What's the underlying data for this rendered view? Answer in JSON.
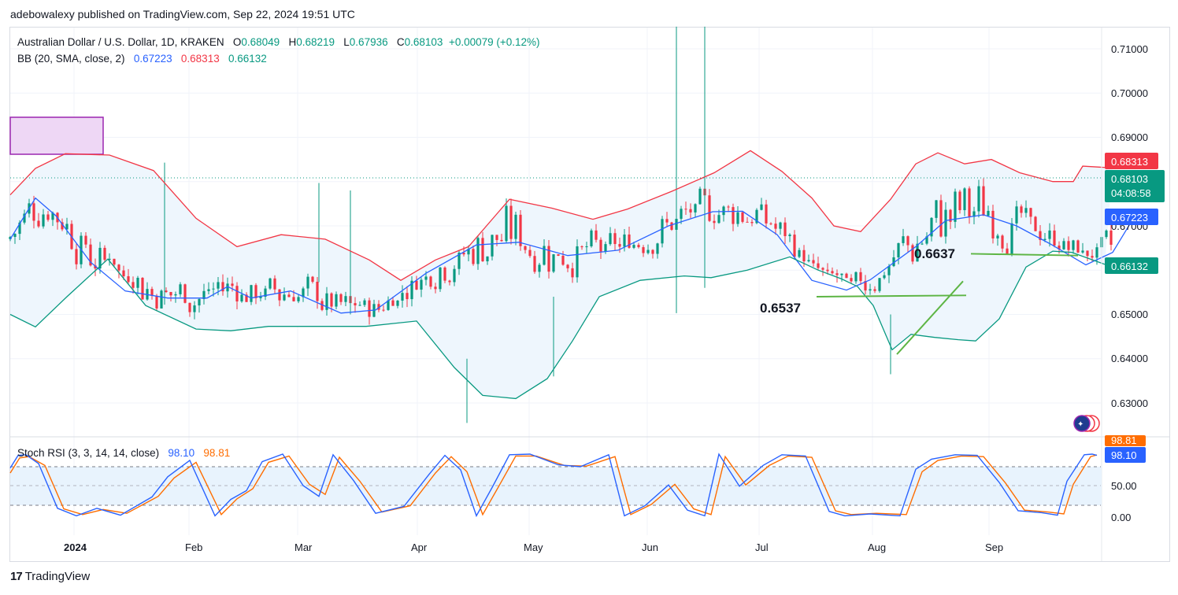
{
  "header": {
    "published_by": "adebowalexy published on TradingView.com, Sep 22, 2024 19:51 UTC"
  },
  "legend": {
    "symbol_label": "Australian Dollar / U.S. Dollar, 1D, KRAKEN",
    "open_prefix": "O",
    "open": "0.68049",
    "high_prefix": "H",
    "high": "0.68219",
    "low_prefix": "L",
    "low": "0.67936",
    "close_prefix": "C",
    "close": "0.68103",
    "change": "+0.00079 (+0.12%)",
    "bb_label": "BB (20, SMA, close, 2)",
    "bb_basis": "0.67223",
    "bb_upper": "0.68313",
    "bb_lower": "0.66132",
    "stoch_label": "Stoch RSI (3, 3, 14, 14, close)",
    "stoch_k": "98.10",
    "stoch_d": "98.81"
  },
  "price_axis": {
    "ticks": [
      "0.71000",
      "0.70000",
      "0.69000",
      "0.67000",
      "0.65000",
      "0.64000",
      "0.63000"
    ],
    "badge_upper": "0.68313",
    "badge_price": "0.68103",
    "badge_countdown": "04:08:58",
    "badge_basis": "0.67223",
    "badge_lower": "0.66132"
  },
  "rsi_axis": {
    "ticks": [
      "50.00",
      "0.00"
    ],
    "badge_d": "98.81",
    "badge_k": "98.10"
  },
  "time_axis": {
    "labels": [
      "2024",
      "Feb",
      "Mar",
      "Apr",
      "May",
      "Jun",
      "Jul",
      "Aug",
      "Sep"
    ]
  },
  "annotations": {
    "support_label": "0.6537",
    "resistance_label": "0.6637"
  },
  "brand": {
    "name": "TradingView",
    "mark": "17"
  },
  "colors": {
    "bull": "#089981",
    "bear": "#f23645",
    "bb_basis": "#2962ff",
    "bb_upper": "#f23645",
    "bb_lower": "#089981",
    "bb_fill": "#eef6fd",
    "stoch_k": "#2962ff",
    "stoch_d": "#ff6d00",
    "trendline": "#5db544",
    "supply_zone": "#9c27b0"
  },
  "chart_data": {
    "type": "candlestick",
    "series_labels": [
      "BB basis",
      "BB upper",
      "BB lower",
      "Stoch RSI K",
      "Stoch RSI D"
    ],
    "y_range": [
      0.6235,
      0.7145
    ],
    "x_labels": [
      "2024",
      "Feb",
      "Mar",
      "Apr",
      "May",
      "Jun",
      "Jul",
      "Aug",
      "Sep"
    ],
    "bb_basis": [
      [
        0,
        0.667
      ],
      [
        16,
        0.6763
      ],
      [
        29,
        0.6723
      ],
      [
        51,
        0.6618
      ],
      [
        73,
        0.6553
      ],
      [
        100,
        0.6537
      ],
      [
        125,
        0.6537
      ],
      [
        138,
        0.6563
      ],
      [
        153,
        0.6537
      ],
      [
        178,
        0.6553
      ],
      [
        210,
        0.6503
      ],
      [
        232,
        0.651
      ],
      [
        264,
        0.6593
      ],
      [
        296,
        0.6657
      ],
      [
        323,
        0.6663
      ],
      [
        354,
        0.6633
      ],
      [
        386,
        0.6645
      ],
      [
        418,
        0.67
      ],
      [
        446,
        0.6732
      ],
      [
        465,
        0.6733
      ],
      [
        487,
        0.668
      ],
      [
        509,
        0.6577
      ],
      [
        531,
        0.6555
      ],
      [
        546,
        0.6578
      ],
      [
        575,
        0.6653
      ],
      [
        594,
        0.6712
      ],
      [
        618,
        0.6725
      ],
      [
        639,
        0.67
      ],
      [
        660,
        0.666
      ],
      [
        683,
        0.6612
      ],
      [
        700,
        0.664
      ],
      [
        714,
        0.6722
      ]
    ],
    "bb_upper": [
      [
        0,
        0.677
      ],
      [
        16,
        0.683
      ],
      [
        35,
        0.6863
      ],
      [
        63,
        0.686
      ],
      [
        91,
        0.6825
      ],
      [
        118,
        0.6717
      ],
      [
        144,
        0.6653
      ],
      [
        172,
        0.668
      ],
      [
        200,
        0.667
      ],
      [
        228,
        0.6623
      ],
      [
        248,
        0.6577
      ],
      [
        270,
        0.6623
      ],
      [
        291,
        0.6653
      ],
      [
        317,
        0.676
      ],
      [
        344,
        0.674
      ],
      [
        370,
        0.6715
      ],
      [
        392,
        0.6738
      ],
      [
        420,
        0.6778
      ],
      [
        447,
        0.682
      ],
      [
        470,
        0.687
      ],
      [
        490,
        0.6823
      ],
      [
        509,
        0.6763
      ],
      [
        523,
        0.67
      ],
      [
        540,
        0.6687
      ],
      [
        559,
        0.676
      ],
      [
        575,
        0.684
      ],
      [
        589,
        0.6865
      ],
      [
        606,
        0.684
      ],
      [
        623,
        0.685
      ],
      [
        641,
        0.682
      ],
      [
        662,
        0.68
      ],
      [
        675,
        0.68
      ],
      [
        681,
        0.6835
      ],
      [
        700,
        0.6831
      ]
    ],
    "bb_lower": [
      [
        0,
        0.65
      ],
      [
        16,
        0.6472
      ],
      [
        36,
        0.654
      ],
      [
        62,
        0.6625
      ],
      [
        86,
        0.652
      ],
      [
        118,
        0.6467
      ],
      [
        140,
        0.6463
      ],
      [
        164,
        0.6473
      ],
      [
        196,
        0.6473
      ],
      [
        226,
        0.6473
      ],
      [
        258,
        0.6485
      ],
      [
        282,
        0.638
      ],
      [
        300,
        0.6317
      ],
      [
        321,
        0.631
      ],
      [
        341,
        0.6355
      ],
      [
        357,
        0.644
      ],
      [
        374,
        0.654
      ],
      [
        400,
        0.6577
      ],
      [
        428,
        0.6587
      ],
      [
        445,
        0.6583
      ],
      [
        468,
        0.66
      ],
      [
        495,
        0.663
      ],
      [
        513,
        0.66
      ],
      [
        528,
        0.658
      ],
      [
        538,
        0.6563
      ],
      [
        548,
        0.652
      ],
      [
        560,
        0.642
      ],
      [
        572,
        0.6455
      ],
      [
        587,
        0.6448
      ],
      [
        602,
        0.6443
      ],
      [
        613,
        0.644
      ],
      [
        628,
        0.649
      ],
      [
        645,
        0.6607
      ],
      [
        662,
        0.6643
      ],
      [
        674,
        0.664
      ],
      [
        695,
        0.6613
      ]
    ],
    "trendlines": [
      {
        "from": [
          512,
          0.654
        ],
        "to": [
          607,
          0.6543
        ]
      },
      {
        "from": [
          563,
          0.641
        ],
        "to": [
          605,
          0.6575
        ]
      },
      {
        "from": [
          610,
          0.6637
        ],
        "to": [
          678,
          0.6633
        ]
      }
    ],
    "stoch_k": [
      [
        0,
        78
      ],
      [
        5,
        98
      ],
      [
        10,
        99
      ],
      [
        18,
        85
      ],
      [
        30,
        14
      ],
      [
        42,
        2
      ],
      [
        55,
        14
      ],
      [
        70,
        3
      ],
      [
        90,
        32
      ],
      [
        100,
        64
      ],
      [
        114,
        90
      ],
      [
        130,
        2
      ],
      [
        140,
        28
      ],
      [
        150,
        42
      ],
      [
        160,
        88
      ],
      [
        173,
        100
      ],
      [
        186,
        50
      ],
      [
        196,
        33
      ],
      [
        205,
        99
      ],
      [
        218,
        58
      ],
      [
        232,
        6
      ],
      [
        250,
        17
      ],
      [
        266,
        68
      ],
      [
        276,
        98
      ],
      [
        286,
        75
      ],
      [
        296,
        2
      ],
      [
        306,
        47
      ],
      [
        317,
        99
      ],
      [
        330,
        100
      ],
      [
        348,
        83
      ],
      [
        362,
        80
      ],
      [
        380,
        99
      ],
      [
        390,
        2
      ],
      [
        403,
        18
      ],
      [
        418,
        51
      ],
      [
        430,
        11
      ],
      [
        441,
        2
      ],
      [
        450,
        100
      ],
      [
        463,
        49
      ],
      [
        478,
        82
      ],
      [
        490,
        99
      ],
      [
        505,
        97
      ],
      [
        520,
        9
      ],
      [
        530,
        2
      ],
      [
        546,
        5
      ],
      [
        565,
        2
      ],
      [
        575,
        76
      ],
      [
        585,
        92
      ],
      [
        600,
        99
      ],
      [
        614,
        98
      ],
      [
        628,
        55
      ],
      [
        640,
        10
      ],
      [
        655,
        7
      ],
      [
        665,
        3
      ],
      [
        671,
        57
      ],
      [
        682,
        99
      ],
      [
        687,
        100
      ],
      [
        690,
        98
      ]
    ],
    "stoch_d": [
      [
        0,
        70
      ],
      [
        6,
        94
      ],
      [
        12,
        96
      ],
      [
        22,
        82
      ],
      [
        34,
        13
      ],
      [
        46,
        4
      ],
      [
        59,
        12
      ],
      [
        74,
        6
      ],
      [
        94,
        33
      ],
      [
        104,
        62
      ],
      [
        118,
        87
      ],
      [
        134,
        4
      ],
      [
        144,
        29
      ],
      [
        154,
        45
      ],
      [
        164,
        87
      ],
      [
        177,
        97
      ],
      [
        190,
        52
      ],
      [
        200,
        36
      ],
      [
        209,
        95
      ],
      [
        222,
        57
      ],
      [
        236,
        8
      ],
      [
        254,
        18
      ],
      [
        270,
        70
      ],
      [
        280,
        96
      ],
      [
        290,
        72
      ],
      [
        300,
        4
      ],
      [
        310,
        48
      ],
      [
        321,
        97
      ],
      [
        334,
        97
      ],
      [
        352,
        82
      ],
      [
        366,
        81
      ],
      [
        384,
        96
      ],
      [
        394,
        4
      ],
      [
        407,
        20
      ],
      [
        422,
        52
      ],
      [
        434,
        13
      ],
      [
        445,
        4
      ],
      [
        454,
        96
      ],
      [
        467,
        51
      ],
      [
        482,
        82
      ],
      [
        494,
        97
      ],
      [
        509,
        95
      ],
      [
        524,
        10
      ],
      [
        534,
        4
      ],
      [
        550,
        6
      ],
      [
        569,
        4
      ],
      [
        579,
        72
      ],
      [
        589,
        90
      ],
      [
        604,
        97
      ],
      [
        618,
        96
      ],
      [
        632,
        54
      ],
      [
        644,
        11
      ],
      [
        659,
        8
      ],
      [
        669,
        5
      ],
      [
        675,
        52
      ],
      [
        686,
        96
      ],
      [
        690,
        98.81
      ]
    ],
    "candles_note": "approximate daily OHLC, Dec 2023 – Sep 2024"
  }
}
